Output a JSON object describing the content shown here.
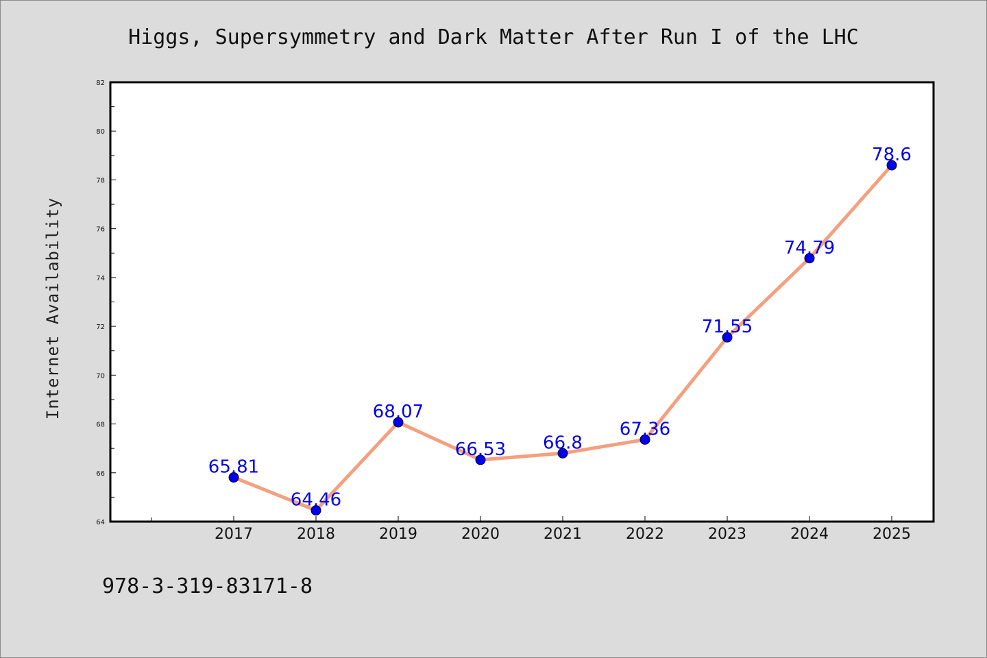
{
  "chart_data": {
    "type": "line",
    "title": "Higgs, Supersymmetry and Dark Matter After Run I of the LHC",
    "xlabel": "",
    "ylabel": "Internet Availability",
    "categories": [
      "2017",
      "2018",
      "2019",
      "2020",
      "2021",
      "2022",
      "2023",
      "2024",
      "2025"
    ],
    "series": [
      {
        "values": [
          65.81,
          64.46,
          68.07,
          66.53,
          66.8,
          67.36,
          71.55,
          74.79,
          78.6
        ],
        "data_labels": [
          "65.81",
          "64.46",
          "68.07",
          "66.53",
          "66.8",
          "67.36",
          "71.55",
          "74.79",
          "78.6"
        ]
      }
    ],
    "ylim": [
      64,
      82
    ],
    "yticks": [
      "64",
      "66",
      "68",
      "70",
      "72",
      "74",
      "76",
      "78",
      "80",
      "82"
    ],
    "grid": false,
    "line_color": "#f4a07e",
    "marker_color": "#0000ee",
    "label_color": "#0000ee"
  },
  "footer_text": "978-3-319-83171-8"
}
